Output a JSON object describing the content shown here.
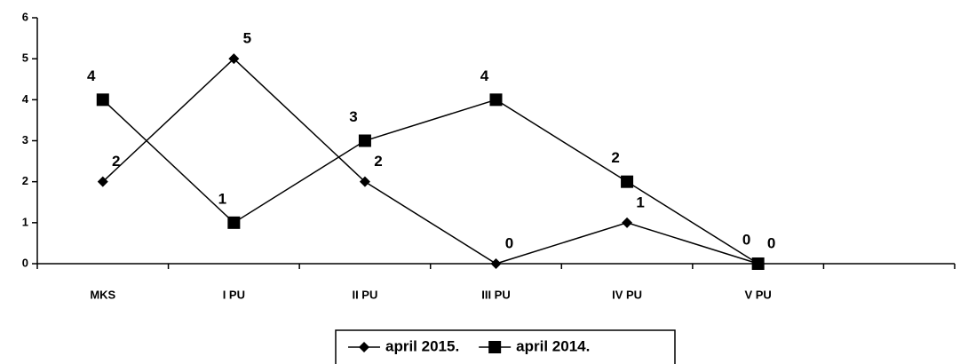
{
  "chart_data": {
    "type": "line",
    "categories": [
      "MKS",
      "I PU",
      "II PU",
      "III PU",
      "IV PU",
      "V PU",
      null
    ],
    "series": [
      {
        "name": "april 2015.",
        "color": "#000000",
        "marker": "diamond",
        "values": [
          2,
          5,
          2,
          0,
          1,
          0,
          null
        ]
      },
      {
        "name": "april 2014.",
        "color": "#000000",
        "marker": "square",
        "values": [
          4,
          1,
          3,
          4,
          2,
          0,
          null
        ]
      }
    ],
    "ylim": [
      0,
      6
    ],
    "yticks": [
      0,
      1,
      2,
      3,
      4,
      5,
      6
    ],
    "legend": "bottom"
  }
}
